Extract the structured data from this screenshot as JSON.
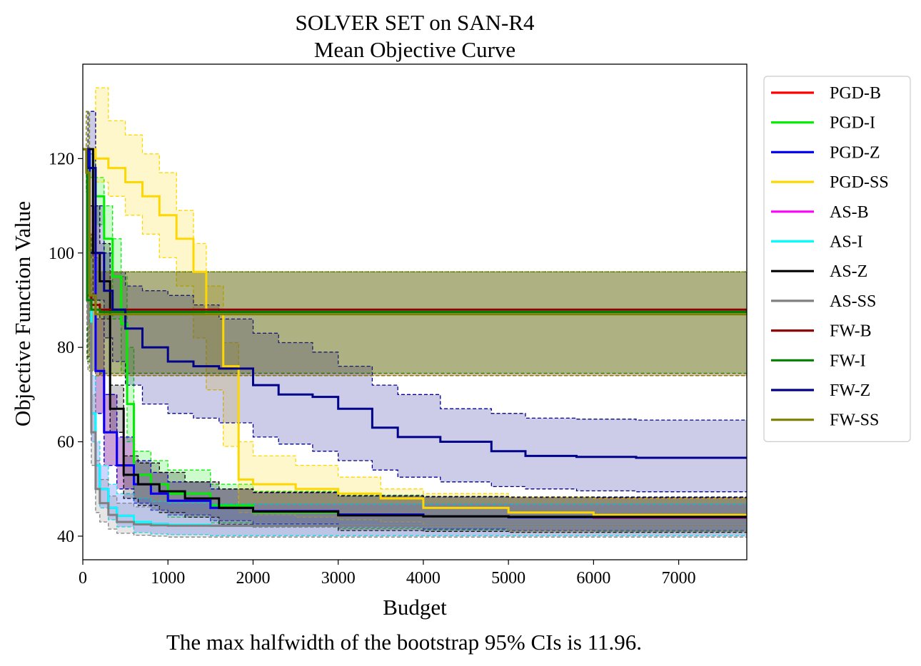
{
  "chart_data": {
    "type": "line",
    "title": "SOLVER SET on SAN-R4",
    "subtitle": "Mean Objective Curve",
    "xlabel": "Budget",
    "ylabel": "Objective Function Value",
    "xlim": [
      0,
      7800
    ],
    "ylim": [
      35,
      140
    ],
    "xticks": [
      0,
      1000,
      2000,
      3000,
      4000,
      5000,
      6000,
      7000
    ],
    "yticks": [
      40,
      60,
      80,
      100,
      120
    ],
    "grid": false,
    "legend_position": "outside-right",
    "footnote": "The max halfwidth of the bootstrap 95% CIs is 11.96.",
    "series": [
      {
        "name": "PGD-B",
        "color": "#ff0000",
        "x": [
          0,
          80,
          150,
          250,
          400,
          600,
          800,
          1000,
          1500,
          2000,
          3000,
          4000,
          5000,
          6000,
          7800
        ],
        "y": [
          122,
          100,
          75,
          62,
          55,
          51,
          49,
          47.5,
          46,
          45.3,
          44.6,
          44.2,
          44,
          43.9,
          43.8
        ],
        "lo": [
          122,
          90,
          66,
          55,
          50,
          47,
          45.5,
          44.5,
          43.3,
          42.6,
          42,
          41.5,
          41.2,
          41,
          40.8
        ],
        "hi": [
          122,
          110,
          86,
          70,
          61,
          56,
          53.5,
          51.5,
          50,
          49.2,
          48.6,
          48.3,
          48.2,
          48.1,
          48
        ]
      },
      {
        "name": "PGD-I",
        "color": "#00ee00",
        "x": [
          0,
          80,
          150,
          250,
          350,
          450,
          520,
          600,
          800,
          1000,
          1500,
          2000,
          3000,
          4000,
          5000,
          7800
        ],
        "y": [
          122,
          118,
          112,
          103,
          95,
          85,
          68,
          53,
          51,
          49,
          46.5,
          45,
          44.5,
          44.2,
          44,
          43.8
        ],
        "lo": [
          122,
          116,
          106,
          96,
          86,
          75,
          60,
          47,
          45.5,
          44,
          42.8,
          42,
          41.6,
          41.3,
          41,
          40.8
        ],
        "hi": [
          122,
          121,
          116,
          110,
          103,
          95,
          80,
          58,
          56,
          54,
          51,
          49.5,
          48.7,
          48.4,
          48.2,
          48
        ]
      },
      {
        "name": "PGD-Z",
        "color": "#0000ff",
        "x": [
          0,
          80,
          150,
          250,
          400,
          600,
          800,
          1000,
          1500,
          2000,
          3000,
          4000,
          5000,
          7800
        ],
        "y": [
          122,
          100,
          75,
          62,
          55,
          51,
          49,
          47.5,
          46,
          45.3,
          44.6,
          44.2,
          44,
          43.8
        ],
        "lo": [
          122,
          90,
          66,
          55,
          50,
          47,
          45.5,
          44.5,
          43.3,
          42.6,
          42,
          41.5,
          41.2,
          40.8
        ],
        "hi": [
          122,
          110,
          86,
          70,
          61,
          56,
          53.5,
          51.5,
          50,
          49.2,
          48.6,
          48.3,
          48.2,
          48
        ]
      },
      {
        "name": "PGD-SS",
        "color": "#ffd700",
        "x": [
          0,
          150,
          300,
          500,
          700,
          900,
          1100,
          1300,
          1450,
          1650,
          1830,
          2000,
          2500,
          3000,
          3500,
          4000,
          5000,
          6000,
          7800
        ],
        "y": [
          122,
          120,
          118,
          115,
          112,
          108,
          103,
          96,
          87,
          76,
          52,
          51,
          50,
          49,
          48,
          46,
          45,
          44.5,
          44
        ],
        "lo": [
          122,
          115,
          112,
          108,
          104,
          99,
          93,
          82,
          71,
          59,
          45,
          44.5,
          44,
          43.5,
          43,
          42,
          41,
          40.8,
          40.5
        ],
        "hi": [
          122,
          135,
          128,
          125,
          121,
          117,
          109,
          102,
          93,
          81,
          60,
          57,
          55,
          52.5,
          50,
          49,
          48.2,
          48,
          48
        ]
      },
      {
        "name": "AS-B",
        "color": "#ff00ff",
        "x": [
          0,
          60,
          100,
          150,
          200,
          300,
          400,
          600,
          800,
          1000,
          1500,
          7800
        ],
        "y": [
          122,
          90,
          66,
          55,
          50,
          46,
          44.3,
          43,
          42.6,
          42.4,
          42.2,
          42
        ],
        "lo": [
          122,
          80,
          60,
          50,
          46,
          43.5,
          42,
          40.8,
          40.5,
          40.3,
          40.1,
          40
        ],
        "hi": [
          122,
          100,
          74,
          60,
          55,
          51,
          49,
          48,
          47.3,
          47,
          46.8,
          46.6
        ]
      },
      {
        "name": "AS-I",
        "color": "#00ffff",
        "x": [
          0,
          60,
          100,
          150,
          200,
          300,
          400,
          600,
          800,
          1000,
          1500,
          7800
        ],
        "y": [
          122,
          90,
          66,
          55,
          50,
          46,
          44.3,
          43,
          42.6,
          42.4,
          42.2,
          42
        ],
        "lo": [
          122,
          80,
          60,
          50,
          46,
          43.5,
          42,
          40.8,
          40.5,
          40.3,
          40.1,
          40
        ],
        "hi": [
          122,
          100,
          74,
          60,
          55,
          51,
          49,
          48,
          47.3,
          47,
          46.8,
          46.6
        ]
      },
      {
        "name": "AS-Z",
        "color": "#000000",
        "x": [
          0,
          120,
          200,
          320,
          480,
          650,
          900,
          1200,
          1600,
          2000,
          3000,
          4000,
          5000,
          7800
        ],
        "y": [
          122,
          100,
          94,
          67,
          53,
          51,
          49.5,
          48,
          46,
          45.2,
          44.4,
          44.2,
          44.1,
          44
        ],
        "lo": [
          122,
          90,
          86,
          62,
          48,
          46.5,
          45,
          44,
          42.5,
          42,
          41.2,
          41,
          40.8,
          40.6
        ],
        "hi": [
          122,
          110,
          102,
          72,
          57,
          55.5,
          53.5,
          51.5,
          50,
          49.3,
          48.5,
          48.4,
          48.3,
          48.2
        ]
      },
      {
        "name": "AS-SS",
        "color": "#808080",
        "x": [
          0,
          60,
          100,
          150,
          200,
          300,
          400,
          600,
          800,
          1000,
          1500,
          7800
        ],
        "y": [
          122,
          85,
          62,
          50,
          47,
          44.5,
          43,
          42.5,
          42.3,
          42.2,
          42.2,
          42.2
        ],
        "lo": [
          122,
          75,
          55,
          45,
          43,
          41.5,
          40.6,
          40.2,
          40,
          39.8,
          39.8,
          39.8
        ],
        "hi": [
          122,
          95,
          70,
          56,
          52,
          48.5,
          47,
          46.2,
          46,
          45.8,
          45.8,
          45.8
        ]
      },
      {
        "name": "FW-B",
        "color": "#8b0000",
        "x": [
          0,
          50,
          100,
          200,
          7800
        ],
        "y": [
          122,
          91,
          89,
          88,
          87.3
        ],
        "lo": [
          122,
          78,
          75,
          74,
          73.5
        ],
        "hi": [
          122,
          104,
          100,
          96,
          95.5
        ]
      },
      {
        "name": "FW-I",
        "color": "#008000",
        "x": [
          0,
          50,
          100,
          200,
          7800
        ],
        "y": [
          122,
          90,
          88,
          87.5,
          87.3
        ],
        "lo": [
          122,
          77,
          75,
          74.5,
          74.5
        ],
        "hi": [
          122,
          103,
          99,
          96,
          95.5
        ]
      },
      {
        "name": "FW-Z",
        "color": "#00008b",
        "x": [
          0,
          60,
          150,
          250,
          350,
          500,
          700,
          1000,
          1300,
          1600,
          2000,
          2300,
          2700,
          3000,
          3400,
          3700,
          4200,
          4800,
          5200,
          5800,
          6500,
          7800
        ],
        "y": [
          122,
          118,
          100,
          92,
          88,
          84,
          80,
          77,
          76,
          75.5,
          72,
          70,
          69.5,
          67,
          63,
          61,
          60,
          58,
          57,
          56.8,
          56.6,
          56.5
        ],
        "lo": [
          122,
          110,
          90,
          82,
          77,
          72,
          68,
          66,
          65,
          64,
          61,
          59.5,
          58,
          56,
          54,
          52.5,
          51.5,
          50.5,
          50,
          49.6,
          49.4,
          49.3
        ],
        "hi": [
          122,
          130,
          110,
          100,
          96,
          93,
          92,
          91,
          89,
          86,
          83,
          81,
          79,
          76,
          72,
          70,
          67,
          66,
          65,
          64.8,
          64.6,
          64.5
        ]
      },
      {
        "name": "FW-SS",
        "color": "#808000",
        "x": [
          0,
          40,
          80,
          150,
          7800
        ],
        "y": [
          122,
          117,
          91,
          87,
          87
        ],
        "lo": [
          122,
          113,
          75,
          74,
          74.5
        ],
        "hi": [
          122,
          130,
          104,
          96,
          95.5
        ]
      }
    ]
  }
}
